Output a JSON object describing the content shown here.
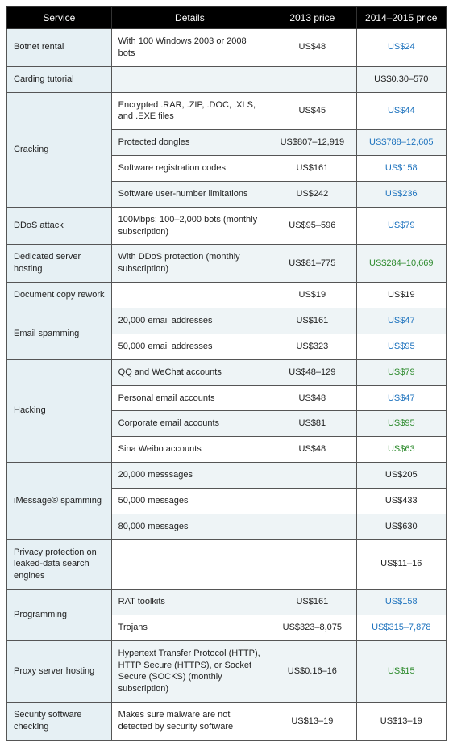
{
  "columns": [
    "Service",
    "Details",
    "2013 price",
    "2014–2015 price"
  ],
  "rows": [
    {
      "service": "Botnet rental",
      "rowspan": 1,
      "alt": false,
      "details": "With 100 Windows 2003 or 2008 bots",
      "p13": "US$48",
      "p14": "US$24",
      "p14class": "blue"
    },
    {
      "service": "Carding tutorial",
      "rowspan": 1,
      "alt": true,
      "details": "",
      "p13": "",
      "p14": "US$0.30–570",
      "p14class": ""
    },
    {
      "service": "Cracking",
      "rowspan": 4,
      "alt": false,
      "details": "Encrypted .RAR, .ZIP, .DOC, .XLS, and .EXE files",
      "p13": "US$45",
      "p14": "US$44",
      "p14class": "blue"
    },
    {
      "alt": true,
      "details": "Protected dongles",
      "p13": "US$807–12,919",
      "p14": "US$788–12,605",
      "p14class": "blue"
    },
    {
      "alt": false,
      "details": "Software registration codes",
      "p13": "US$161",
      "p14": "US$158",
      "p14class": "blue"
    },
    {
      "alt": true,
      "details": "Software user-number limitations",
      "p13": "US$242",
      "p14": "US$236",
      "p14class": "blue"
    },
    {
      "service": "DDoS attack",
      "rowspan": 1,
      "alt": false,
      "details": "100Mbps; 100–2,000 bots (monthly subscription)",
      "p13": "US$95–596",
      "p14": "US$79",
      "p14class": "blue"
    },
    {
      "service": "Dedicated server hosting",
      "rowspan": 1,
      "alt": true,
      "details": "With DDoS protection (monthly subscription)",
      "p13": "US$81–775",
      "p14": "US$284–10,669",
      "p14class": "green"
    },
    {
      "service": "Document copy rework",
      "rowspan": 1,
      "alt": false,
      "details": "",
      "p13": "US$19",
      "p14": "US$19",
      "p14class": ""
    },
    {
      "service": "Email spamming",
      "rowspan": 2,
      "alt": true,
      "details": "20,000 email addresses",
      "p13": "US$161",
      "p14": "US$47",
      "p14class": "blue"
    },
    {
      "alt": false,
      "details": "50,000 email addresses",
      "p13": "US$323",
      "p14": "US$95",
      "p14class": "blue"
    },
    {
      "service": "Hacking",
      "rowspan": 4,
      "alt": true,
      "details": "QQ and WeChat accounts",
      "p13": "US$48–129",
      "p14": "US$79",
      "p14class": "green"
    },
    {
      "alt": false,
      "details": "Personal email accounts",
      "p13": "US$48",
      "p14": "US$47",
      "p14class": "blue"
    },
    {
      "alt": true,
      "details": "Corporate email accounts",
      "p13": "US$81",
      "p14": "US$95",
      "p14class": "green"
    },
    {
      "alt": false,
      "details": "Sina Weibo accounts",
      "p13": "US$48",
      "p14": "US$63",
      "p14class": "green"
    },
    {
      "service": "iMessage® spamming",
      "rowspan": 3,
      "alt": true,
      "details": "20,000 messsages",
      "p13": "",
      "p14": "US$205",
      "p14class": ""
    },
    {
      "alt": false,
      "details": "50,000 messages",
      "p13": "",
      "p14": "US$433",
      "p14class": ""
    },
    {
      "alt": true,
      "details": "80,000 messages",
      "p13": "",
      "p14": "US$630",
      "p14class": ""
    },
    {
      "service": "Privacy protection on leaked-data search engines",
      "rowspan": 1,
      "alt": false,
      "details": "",
      "p13": "",
      "p14": "US$11–16",
      "p14class": ""
    },
    {
      "service": "Programming",
      "rowspan": 2,
      "alt": true,
      "details": "RAT toolkits",
      "p13": "US$161",
      "p14": "US$158",
      "p14class": "blue"
    },
    {
      "alt": false,
      "details": "Trojans",
      "p13": "US$323–8,075",
      "p14": "US$315–7,878",
      "p14class": "blue"
    },
    {
      "service": "Proxy server hosting",
      "rowspan": 1,
      "alt": true,
      "details": "Hypertext Transfer Protocol (HTTP), HTTP Secure (HTTPS), or Socket Secure (SOCKS) (monthly subscription)",
      "p13": "US$0.16–16",
      "p14": "US$15",
      "p14class": "green"
    },
    {
      "service": "Security software checking",
      "rowspan": 1,
      "alt": false,
      "details": "Makes sure malware are not detected by security software",
      "p13": "US$13–19",
      "p14": "US$13–19",
      "p14class": ""
    }
  ]
}
